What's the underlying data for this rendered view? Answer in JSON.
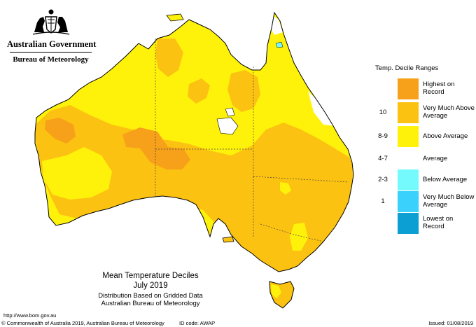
{
  "header": {
    "government": "Australian Government",
    "bureau": "Bureau of Meteorology",
    "logo_icon": "coat-of-arms-icon"
  },
  "legend": {
    "title": "Temp. Decile Ranges",
    "items": [
      {
        "range": "",
        "label": "Highest on Record",
        "color": "#f7a019"
      },
      {
        "range": "10",
        "label": "Very Much Above Average",
        "color": "#fcc211"
      },
      {
        "range": "8-9",
        "label": "Above Average",
        "color": "#fff20a"
      },
      {
        "range": "4-7",
        "label": "Average",
        "color": "#ffffff"
      },
      {
        "range": "2-3",
        "label": "Below Average",
        "color": "#74fafd"
      },
      {
        "range": "1",
        "label": "Very Much Below Average",
        "color": "#3ad1fd"
      },
      {
        "range": "",
        "label": "Lowest on Record",
        "color": "#0b9fd4"
      }
    ]
  },
  "caption": {
    "title": "Mean Temperature Deciles",
    "period": "July 2019",
    "line1": "Distribution Based on Gridded Data",
    "line2": "Australian Bureau of Meteorology"
  },
  "footer": {
    "url": "http://www.bom.gov.au",
    "copyright": "© Commonwealth of Australia 2019, Australian Bureau of Meteorology",
    "id_code": "ID code: AWAP",
    "issued": "Issued: 01/08/2019"
  }
}
